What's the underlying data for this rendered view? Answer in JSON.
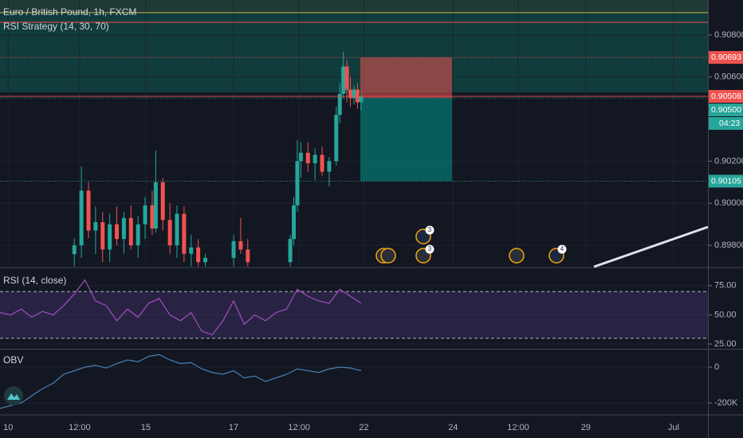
{
  "chart_data": [
    {
      "type": "candlestick",
      "title": "Euro / British Pound, 1h, FXCM",
      "subtitle": "RSI Strategy (14, 30, 70)",
      "x": [
        21,
        23,
        25,
        27,
        29,
        31,
        33,
        35,
        37,
        39,
        41,
        43,
        44,
        46,
        48,
        50,
        52,
        54,
        56,
        58,
        66,
        68,
        70,
        82,
        83,
        84,
        85,
        87,
        89,
        91,
        93,
        95,
        96,
        97,
        98,
        99,
        100,
        101,
        102
      ],
      "open": [
        0.89758,
        0.898,
        0.9006,
        0.8987,
        0.8991,
        0.8978,
        0.899,
        0.8983,
        0.8993,
        0.898,
        0.899,
        0.8999,
        0.8988,
        0.901,
        0.8992,
        0.898,
        0.8995,
        0.8976,
        0.8979,
        0.8972,
        0.8974,
        0.8982,
        0.8978,
        0.8972,
        0.8983,
        0.8999,
        0.902,
        0.9024,
        0.9019,
        0.9023,
        0.9015,
        0.902,
        0.9042,
        0.9052,
        0.9065,
        0.9054,
        0.905,
        0.9054,
        0.9048
      ],
      "high": [
        0.89834,
        0.90174,
        0.901,
        0.89985,
        0.8996,
        0.8995,
        0.89985,
        0.8996,
        0.8999,
        0.8994,
        0.9003,
        0.9006,
        0.9025,
        0.9012,
        0.9,
        0.8999,
        0.89985,
        0.8985,
        0.8983,
        0.8976,
        0.8985,
        0.8993,
        0.8983,
        0.8985,
        0.9003,
        0.903,
        0.9029,
        0.9029,
        0.9026,
        0.9027,
        0.9022,
        0.9046,
        0.9057,
        0.90721,
        0.9068,
        0.906,
        0.9056,
        0.9057,
        0.9053
      ],
      "low": [
        0.897,
        0.8974,
        0.89834,
        0.89758,
        0.8972,
        0.8972,
        0.898,
        0.8976,
        0.8978,
        0.8974,
        0.8983,
        0.8985,
        0.8986,
        0.8987,
        0.8976,
        0.8974,
        0.8972,
        0.897,
        0.897,
        0.897,
        0.897,
        0.8976,
        0.897,
        0.897,
        0.898,
        0.8996,
        0.9012,
        0.9015,
        0.9011,
        0.9013,
        0.9008,
        0.9018,
        0.9038,
        0.905,
        0.9048,
        0.9046,
        0.9047,
        0.9045,
        0.9044
      ],
      "close": [
        0.898,
        0.9006,
        0.8987,
        0.8991,
        0.8978,
        0.899,
        0.8983,
        0.8993,
        0.898,
        0.899,
        0.8999,
        0.8988,
        0.901,
        0.8992,
        0.898,
        0.8995,
        0.8976,
        0.8979,
        0.8972,
        0.8974,
        0.8982,
        0.8978,
        0.8972,
        0.8983,
        0.8999,
        0.902,
        0.9024,
        0.9019,
        0.9023,
        0.9015,
        0.902,
        0.9042,
        0.9052,
        0.9065,
        0.9054,
        0.905,
        0.9054,
        0.9048,
        0.90508
      ],
      "up_color": "#26a69a",
      "down_color": "#ef5350",
      "xlim": [
        0,
        200
      ],
      "xticks": [
        {
          "value": 2.3,
          "label": "10"
        },
        {
          "value": 22.5,
          "label": "12:00"
        },
        {
          "value": 41.2,
          "label": "15"
        },
        {
          "value": 66,
          "label": "17"
        },
        {
          "value": 84.5,
          "label": "12:00"
        },
        {
          "value": 102.8,
          "label": "22"
        },
        {
          "value": 128,
          "label": "24"
        },
        {
          "value": 146.4,
          "label": "12:00"
        },
        {
          "value": 165.5,
          "label": "29"
        },
        {
          "value": 190.3,
          "label": "Jul"
        }
      ],
      "ylim": [
        0.89698,
        0.90966
      ],
      "yticks": [
        {
          "value": 0.908,
          "label": "0.90800"
        },
        {
          "value": 0.906,
          "label": "0.90600"
        },
        {
          "value": 0.902,
          "label": "0.90200"
        },
        {
          "value": 0.9,
          "label": "0.90000"
        },
        {
          "value": 0.898,
          "label": "0.89800"
        }
      ],
      "grid": true,
      "levels": [
        {
          "value": 0.90906,
          "color": "#c9b74b"
        },
        {
          "value": 0.9086,
          "color": "#ef5350"
        }
      ],
      "price_labels": [
        {
          "value": 0.90693,
          "label": "0.90693",
          "color": "#ef5350"
        },
        {
          "value": 0.90508,
          "label": "0.90508",
          "color": "#ef5350"
        },
        {
          "value": 0.905,
          "label": "0.90500",
          "color": "#26a69a",
          "countdown": "04:23"
        },
        {
          "value": 0.90105,
          "label": "0.90105",
          "color": "#26a69a"
        }
      ],
      "position": {
        "x": [
          101.8,
          127.7
        ],
        "stop": 0.90693,
        "entry": 0.905,
        "target": 0.90105
      },
      "events": [
        "3",
        "3",
        "4"
      ]
    },
    {
      "type": "line",
      "title": "RSI (14, close)",
      "color": "#a24fc2",
      "x": [
        0,
        3,
        6,
        9,
        12,
        15,
        18,
        21,
        24,
        27,
        30,
        33,
        36,
        39,
        42,
        45,
        48,
        51,
        54,
        57,
        60,
        63,
        66,
        69,
        72,
        75,
        78,
        81,
        84,
        87,
        90,
        93,
        96,
        99,
        102
      ],
      "values": [
        52,
        50,
        55,
        48,
        53,
        50,
        58,
        68,
        80,
        62,
        58,
        45,
        55,
        48,
        60,
        64,
        50,
        45,
        52,
        36,
        33,
        45,
        62,
        42,
        50,
        45,
        52,
        55,
        72,
        66,
        62,
        60,
        72,
        66,
        60
      ],
      "ylim": [
        21.6,
        89.9
      ],
      "yticks": [
        {
          "value": 75,
          "label": "75.00"
        },
        {
          "value": 50,
          "label": "50.00"
        },
        {
          "value": 25,
          "label": "25.00"
        }
      ],
      "bands": [
        30,
        70
      ]
    },
    {
      "type": "line",
      "title": "OBV",
      "color": "#4a7fb5",
      "x": [
        0,
        3,
        6,
        9,
        12,
        15,
        18,
        21,
        24,
        27,
        30,
        33,
        36,
        39,
        42,
        45,
        48,
        51,
        54,
        57,
        60,
        63,
        66,
        69,
        72,
        75,
        78,
        81,
        84,
        87,
        90,
        93,
        96,
        99,
        102
      ],
      "values": [
        -230000,
        -215000,
        -200000,
        -160000,
        -120000,
        -90000,
        -40000,
        -20000,
        0,
        10000,
        -5000,
        20000,
        40000,
        30000,
        60000,
        70000,
        40000,
        20000,
        25000,
        -10000,
        -30000,
        -40000,
        -20000,
        -60000,
        -50000,
        -80000,
        -60000,
        -40000,
        -10000,
        -20000,
        -30000,
        -10000,
        0,
        -5000,
        -20000
      ],
      "ylim": [
        -262222,
        93333
      ],
      "yticks": [
        0,
        {
          "value": -200000,
          "label": "-200K"
        }
      ]
    }
  ]
}
